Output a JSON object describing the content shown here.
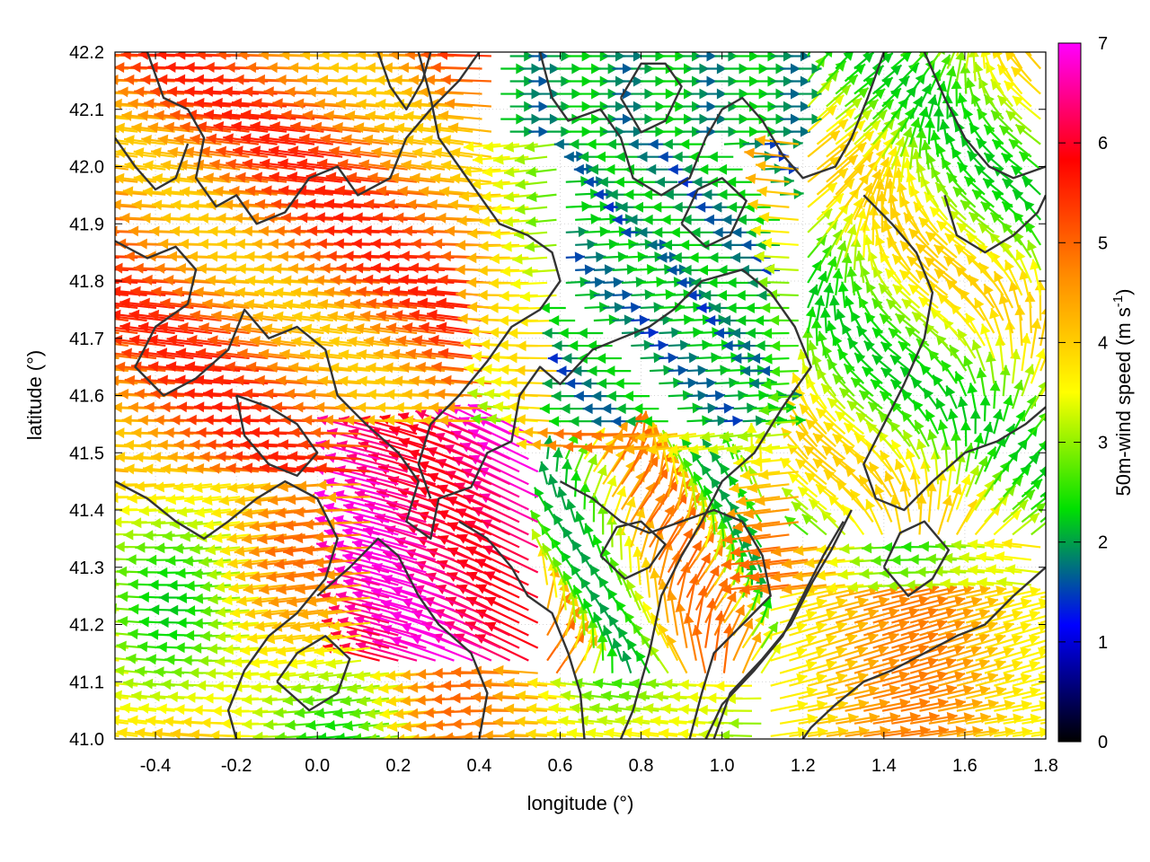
{
  "chart_data": {
    "type": "vector_field",
    "xlabel": "longitude (°)",
    "ylabel": "latitude (°)",
    "xlim": [
      -0.5,
      1.8
    ],
    "ylim": [
      41.0,
      42.2
    ],
    "xticks": [
      -0.4,
      -0.2,
      0.0,
      0.2,
      0.4,
      0.6,
      0.8,
      1.0,
      1.2,
      1.4,
      1.6,
      1.8
    ],
    "xtick_labels": [
      "-0.4",
      "-0.2",
      "0.0",
      "0.2",
      "0.4",
      "0.6",
      "0.8",
      "1.0",
      "1.2",
      "1.4",
      "1.6",
      "1.8"
    ],
    "yticks": [
      41.0,
      41.1,
      41.2,
      41.3,
      41.4,
      41.5,
      41.6,
      41.7,
      41.8,
      41.9,
      42.0,
      42.1,
      42.2
    ],
    "ytick_labels": [
      "41.0",
      "41.1",
      "41.2",
      "41.3",
      "41.4",
      "41.5",
      "41.6",
      "41.7",
      "41.8",
      "41.9",
      "42.0",
      "42.1",
      "42.2"
    ],
    "grid": true,
    "colorbar": {
      "label_main": "50m-wind speed (m s",
      "label_sup": "-1",
      "label_end": ")",
      "range": [
        0,
        7
      ],
      "ticks": [
        "0",
        "1",
        "2",
        "3",
        "4",
        "5",
        "6",
        "7"
      ],
      "colors": [
        "#000000",
        "#0000ff",
        "#00e000",
        "#ffff00",
        "#ff8c00",
        "#ff0000",
        "#ff00ff"
      ]
    },
    "contour_color": "#333333",
    "contours": [
      [
        [
          -0.5,
          41.87
        ],
        [
          -0.42,
          41.84
        ],
        [
          -0.35,
          41.86
        ],
        [
          -0.3,
          41.82
        ],
        [
          -0.32,
          41.76
        ],
        [
          -0.4,
          41.72
        ],
        [
          -0.45,
          41.65
        ],
        [
          -0.38,
          41.6
        ],
        [
          -0.3,
          41.63
        ],
        [
          -0.22,
          41.68
        ],
        [
          -0.18,
          41.75
        ],
        [
          -0.12,
          41.7
        ],
        [
          -0.05,
          41.72
        ],
        [
          0.02,
          41.68
        ],
        [
          0.05,
          41.6
        ],
        [
          0.12,
          41.55
        ],
        [
          0.2,
          41.5
        ],
        [
          0.25,
          41.45
        ],
        [
          0.22,
          41.38
        ],
        [
          0.28,
          41.35
        ],
        [
          0.3,
          41.42
        ],
        [
          0.38,
          41.44
        ],
        [
          0.42,
          41.5
        ],
        [
          0.48,
          41.52
        ],
        [
          0.5,
          41.6
        ],
        [
          0.55,
          41.65
        ],
        [
          0.6,
          41.62
        ],
        [
          0.68,
          41.68
        ],
        [
          0.75,
          41.7
        ],
        [
          0.82,
          41.72
        ],
        [
          0.88,
          41.75
        ],
        [
          0.95,
          41.8
        ],
        [
          1.05,
          41.82
        ],
        [
          1.12,
          41.78
        ],
        [
          1.18,
          41.72
        ],
        [
          1.22,
          41.65
        ],
        [
          1.15,
          41.58
        ],
        [
          1.08,
          41.5
        ],
        [
          1.0,
          41.45
        ],
        [
          0.95,
          41.38
        ],
        [
          0.9,
          41.32
        ],
        [
          0.85,
          41.25
        ],
        [
          0.82,
          41.15
        ],
        [
          0.78,
          41.05
        ],
        [
          0.75,
          41.0
        ]
      ],
      [
        [
          -0.42,
          42.2
        ],
        [
          -0.38,
          42.12
        ],
        [
          -0.32,
          42.1
        ],
        [
          -0.28,
          42.05
        ],
        [
          -0.3,
          41.98
        ],
        [
          -0.25,
          41.93
        ],
        [
          -0.2,
          41.95
        ],
        [
          -0.15,
          41.9
        ],
        [
          -0.08,
          41.92
        ],
        [
          -0.02,
          41.98
        ],
        [
          0.05,
          42.0
        ],
        [
          0.1,
          41.95
        ],
        [
          0.18,
          41.98
        ],
        [
          0.22,
          42.05
        ],
        [
          0.28,
          42.1
        ],
        [
          0.35,
          42.15
        ],
        [
          0.4,
          42.2
        ]
      ],
      [
        [
          0.25,
          42.2
        ],
        [
          0.28,
          42.12
        ],
        [
          0.3,
          42.05
        ],
        [
          0.35,
          42.0
        ],
        [
          0.4,
          41.95
        ],
        [
          0.45,
          41.9
        ],
        [
          0.52,
          41.88
        ],
        [
          0.58,
          41.85
        ],
        [
          0.6,
          41.8
        ],
        [
          0.55,
          41.75
        ],
        [
          0.48,
          41.72
        ],
        [
          0.42,
          41.66
        ],
        [
          0.35,
          41.6
        ],
        [
          0.28,
          41.55
        ],
        [
          0.25,
          41.48
        ],
        [
          0.28,
          41.42
        ]
      ],
      [
        [
          0.55,
          42.2
        ],
        [
          0.58,
          42.12
        ],
        [
          0.62,
          42.08
        ],
        [
          0.7,
          42.1
        ],
        [
          0.75,
          42.05
        ],
        [
          0.78,
          41.98
        ],
        [
          0.85,
          41.95
        ],
        [
          0.92,
          41.98
        ],
        [
          0.96,
          42.05
        ],
        [
          1.0,
          42.1
        ],
        [
          1.05,
          42.12
        ],
        [
          1.1,
          42.08
        ],
        [
          1.15,
          42.02
        ],
        [
          1.2,
          41.98
        ],
        [
          1.28,
          42.0
        ],
        [
          1.32,
          42.05
        ],
        [
          1.36,
          42.12
        ],
        [
          1.4,
          42.2
        ]
      ],
      [
        [
          0.75,
          42.12
        ],
        [
          0.8,
          42.06
        ],
        [
          0.86,
          42.08
        ],
        [
          0.9,
          42.14
        ],
        [
          0.86,
          42.18
        ],
        [
          0.8,
          42.18
        ],
        [
          0.75,
          42.12
        ]
      ],
      [
        [
          1.35,
          41.95
        ],
        [
          1.42,
          41.9
        ],
        [
          1.48,
          41.85
        ],
        [
          1.52,
          41.78
        ],
        [
          1.5,
          41.7
        ],
        [
          1.45,
          41.62
        ],
        [
          1.4,
          41.55
        ],
        [
          1.35,
          41.48
        ],
        [
          1.38,
          41.42
        ],
        [
          1.45,
          41.4
        ],
        [
          1.52,
          41.45
        ],
        [
          1.6,
          41.5
        ],
        [
          1.68,
          41.52
        ],
        [
          1.75,
          41.55
        ],
        [
          1.8,
          41.58
        ]
      ],
      [
        [
          1.5,
          42.2
        ],
        [
          1.55,
          42.12
        ],
        [
          1.6,
          42.05
        ],
        [
          1.66,
          42.0
        ],
        [
          1.72,
          41.98
        ],
        [
          1.8,
          42.0
        ]
      ],
      [
        [
          1.55,
          41.95
        ],
        [
          1.58,
          41.88
        ],
        [
          1.65,
          41.85
        ],
        [
          1.72,
          41.88
        ],
        [
          1.78,
          41.92
        ],
        [
          1.8,
          41.95
        ]
      ],
      [
        [
          -0.5,
          41.45
        ],
        [
          -0.42,
          41.42
        ],
        [
          -0.35,
          41.38
        ],
        [
          -0.28,
          41.35
        ],
        [
          -0.22,
          41.38
        ],
        [
          -0.15,
          41.42
        ],
        [
          -0.08,
          41.45
        ],
        [
          0.0,
          41.42
        ],
        [
          0.05,
          41.35
        ],
        [
          0.02,
          41.28
        ],
        [
          -0.05,
          41.22
        ],
        [
          -0.12,
          41.18
        ],
        [
          -0.18,
          41.12
        ],
        [
          -0.22,
          41.05
        ],
        [
          -0.2,
          41.0
        ]
      ],
      [
        [
          0.0,
          41.25
        ],
        [
          0.08,
          41.3
        ],
        [
          0.15,
          41.35
        ],
        [
          0.2,
          41.32
        ],
        [
          0.25,
          41.25
        ],
        [
          0.3,
          41.2
        ],
        [
          0.38,
          41.15
        ],
        [
          0.42,
          41.08
        ],
        [
          0.4,
          41.0
        ]
      ],
      [
        [
          0.35,
          41.38
        ],
        [
          0.42,
          41.35
        ],
        [
          0.48,
          41.3
        ],
        [
          0.52,
          41.25
        ],
        [
          0.58,
          41.22
        ],
        [
          0.62,
          41.15
        ],
        [
          0.65,
          41.08
        ],
        [
          0.66,
          41.0
        ]
      ],
      [
        [
          0.6,
          41.45
        ],
        [
          0.68,
          41.42
        ],
        [
          0.75,
          41.38
        ],
        [
          0.82,
          41.36
        ],
        [
          0.9,
          41.38
        ],
        [
          0.98,
          41.4
        ],
        [
          1.05,
          41.38
        ],
        [
          1.1,
          41.32
        ],
        [
          1.12,
          41.25
        ],
        [
          1.05,
          41.2
        ],
        [
          0.98,
          41.15
        ],
        [
          0.95,
          41.08
        ],
        [
          0.92,
          41.0
        ]
      ],
      [
        [
          1.3,
          41.38
        ],
        [
          1.25,
          41.32
        ],
        [
          1.2,
          41.25
        ],
        [
          1.15,
          41.18
        ],
        [
          1.08,
          41.12
        ],
        [
          1.0,
          41.06
        ],
        [
          0.96,
          41.0
        ]
      ],
      [
        [
          1.32,
          41.4
        ],
        [
          1.27,
          41.33
        ],
        [
          1.22,
          41.27
        ],
        [
          1.17,
          41.2
        ],
        [
          1.1,
          41.14
        ],
        [
          1.02,
          41.08
        ],
        [
          0.98,
          41.0
        ]
      ],
      [
        [
          1.8,
          41.3
        ],
        [
          1.72,
          41.25
        ],
        [
          1.65,
          41.2
        ],
        [
          1.58,
          41.18
        ],
        [
          1.5,
          41.15
        ],
        [
          1.42,
          41.12
        ],
        [
          1.35,
          41.1
        ],
        [
          1.28,
          41.06
        ],
        [
          1.22,
          41.02
        ],
        [
          1.2,
          41.0
        ]
      ],
      [
        [
          1.4,
          41.3
        ],
        [
          1.46,
          41.25
        ],
        [
          1.52,
          41.28
        ],
        [
          1.56,
          41.33
        ],
        [
          1.5,
          41.38
        ],
        [
          1.44,
          41.36
        ],
        [
          1.4,
          41.3
        ]
      ],
      [
        [
          0.7,
          41.32
        ],
        [
          0.76,
          41.28
        ],
        [
          0.82,
          41.3
        ],
        [
          0.86,
          41.34
        ],
        [
          0.8,
          41.38
        ],
        [
          0.74,
          41.37
        ],
        [
          0.7,
          41.32
        ]
      ],
      [
        [
          -0.2,
          41.6
        ],
        [
          -0.12,
          41.58
        ],
        [
          -0.05,
          41.55
        ],
        [
          0.0,
          41.5
        ],
        [
          -0.05,
          41.46
        ],
        [
          -0.12,
          41.48
        ],
        [
          -0.18,
          41.53
        ],
        [
          -0.2,
          41.6
        ]
      ],
      [
        [
          0.15,
          42.2
        ],
        [
          0.18,
          42.14
        ],
        [
          0.22,
          42.1
        ],
        [
          0.26,
          42.15
        ],
        [
          0.28,
          42.2
        ]
      ],
      [
        [
          -0.5,
          42.05
        ],
        [
          -0.45,
          42.0
        ],
        [
          -0.4,
          41.96
        ],
        [
          -0.35,
          41.98
        ],
        [
          -0.32,
          42.04
        ]
      ],
      [
        [
          0.9,
          41.9
        ],
        [
          0.96,
          41.86
        ],
        [
          1.02,
          41.88
        ],
        [
          1.06,
          41.94
        ],
        [
          1.0,
          41.98
        ],
        [
          0.94,
          41.96
        ],
        [
          0.9,
          41.9
        ]
      ],
      [
        [
          -0.1,
          41.1
        ],
        [
          -0.05,
          41.15
        ],
        [
          0.02,
          41.18
        ],
        [
          0.08,
          41.14
        ],
        [
          0.05,
          41.08
        ],
        [
          -0.02,
          41.05
        ],
        [
          -0.1,
          41.1
        ]
      ]
    ]
  }
}
